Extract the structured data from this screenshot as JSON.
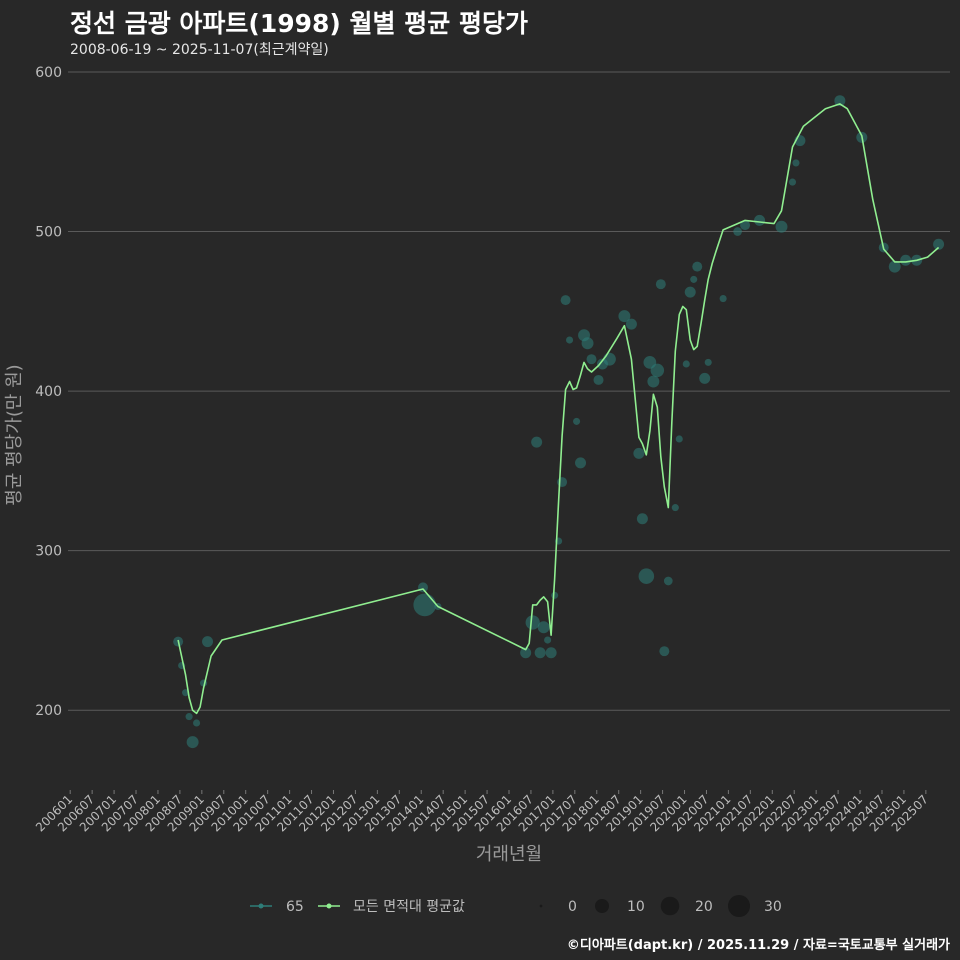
{
  "title": "정선 금광 아파트(1998) 월별 평균 평당가",
  "subtitle": "2008-06-19 ~ 2025-11-07(최근계약일)",
  "footer": "©디아파트(dapt.kr) / 2025.11.29 / 자료=국토교통부 실거래가",
  "colors": {
    "background": "#282828",
    "series_65": "#2e7d78",
    "series_avg": "#90ee90",
    "grid": "#5a5a5a",
    "text": "#bdbdbd"
  },
  "chart_data": {
    "type": "line",
    "xlabel": "거래년월",
    "ylabel": "평균 평당가(만 원)",
    "ylim": [
      150,
      605
    ],
    "yticks": [
      200,
      300,
      400,
      500,
      600
    ],
    "xlim": [
      2005.95,
      2026.05
    ],
    "xticks": [
      "200601",
      "200607",
      "200701",
      "200707",
      "200801",
      "200807",
      "200901",
      "200907",
      "201001",
      "201007",
      "201101",
      "201107",
      "201201",
      "201207",
      "201301",
      "201307",
      "201401",
      "201407",
      "201501",
      "201507",
      "201601",
      "201607",
      "201701",
      "201707",
      "201801",
      "201807",
      "201901",
      "201907",
      "202001",
      "202007",
      "202101",
      "202107",
      "202201",
      "202207",
      "202301",
      "202307",
      "202401",
      "202407",
      "202501",
      "202507"
    ],
    "legend": {
      "series": [
        {
          "name": "65"
        },
        {
          "name": "모든 면적대 평균값"
        }
      ],
      "size_title": "",
      "sizes": [
        {
          "label": "0",
          "value": 0
        },
        {
          "label": "10",
          "value": 10
        },
        {
          "label": "20",
          "value": 20
        },
        {
          "label": "30",
          "value": 30
        }
      ]
    },
    "series": [
      {
        "name": "65",
        "kind": "points",
        "points": [
          [
            2008.46,
            243,
            3
          ],
          [
            2008.54,
            228,
            1
          ],
          [
            2008.63,
            211,
            1
          ],
          [
            2008.71,
            196,
            1
          ],
          [
            2008.79,
            180,
            5
          ],
          [
            2008.88,
            192,
            1
          ],
          [
            2009.04,
            217,
            1
          ],
          [
            2009.13,
            243,
            4
          ],
          [
            2014.04,
            277,
            3
          ],
          [
            2014.08,
            266,
            25
          ],
          [
            2014.38,
            265,
            1
          ],
          [
            2016.38,
            236,
            4
          ],
          [
            2016.54,
            255,
            8
          ],
          [
            2016.63,
            368,
            4
          ],
          [
            2016.71,
            236,
            4
          ],
          [
            2016.79,
            252,
            5
          ],
          [
            2016.88,
            244,
            1
          ],
          [
            2016.96,
            236,
            4
          ],
          [
            2017.04,
            272,
            1
          ],
          [
            2017.13,
            306,
            1
          ],
          [
            2017.21,
            343,
            3
          ],
          [
            2017.29,
            457,
            3
          ],
          [
            2017.38,
            432,
            1
          ],
          [
            2017.54,
            381,
            1
          ],
          [
            2017.63,
            355,
            4
          ],
          [
            2017.71,
            435,
            5
          ],
          [
            2017.79,
            430,
            5
          ],
          [
            2017.88,
            420,
            3
          ],
          [
            2018.04,
            407,
            3
          ],
          [
            2018.13,
            417,
            4
          ],
          [
            2018.29,
            420,
            6
          ],
          [
            2018.63,
            447,
            5
          ],
          [
            2018.79,
            442,
            4
          ],
          [
            2018.96,
            361,
            4
          ],
          [
            2019.04,
            320,
            4
          ],
          [
            2019.13,
            284,
            10
          ],
          [
            2019.21,
            418,
            6
          ],
          [
            2019.29,
            406,
            5
          ],
          [
            2019.38,
            413,
            7
          ],
          [
            2019.46,
            467,
            3
          ],
          [
            2019.54,
            237,
            3
          ],
          [
            2019.63,
            281,
            2
          ],
          [
            2019.79,
            327,
            1
          ],
          [
            2019.88,
            370,
            1
          ],
          [
            2020.04,
            417,
            1
          ],
          [
            2020.13,
            462,
            4
          ],
          [
            2020.21,
            470,
            1
          ],
          [
            2020.29,
            478,
            3
          ],
          [
            2020.46,
            408,
            4
          ],
          [
            2020.54,
            418,
            1
          ],
          [
            2020.88,
            458,
            1
          ],
          [
            2021.21,
            500,
            2
          ],
          [
            2021.38,
            504,
            3
          ],
          [
            2021.71,
            507,
            4
          ],
          [
            2022.21,
            503,
            5
          ],
          [
            2022.46,
            531,
            1
          ],
          [
            2022.54,
            543,
            1
          ],
          [
            2022.63,
            557,
            4
          ],
          [
            2023.54,
            582,
            4
          ],
          [
            2024.04,
            559,
            4
          ],
          [
            2024.54,
            490,
            3
          ],
          [
            2024.79,
            478,
            5
          ],
          [
            2025.04,
            482,
            4
          ],
          [
            2025.29,
            482,
            4
          ],
          [
            2025.79,
            492,
            4
          ]
        ]
      },
      {
        "name": "모든 면적대 평균값",
        "kind": "line",
        "x": [
          2008.46,
          2008.63,
          2008.71,
          2008.79,
          2008.88,
          2008.96,
          2009.04,
          2009.21,
          2009.46,
          2014.04,
          2014.38,
          2016.38,
          2016.46,
          2016.54,
          2016.63,
          2016.71,
          2016.79,
          2016.88,
          2016.96,
          2017.04,
          2017.13,
          2017.21,
          2017.29,
          2017.38,
          2017.46,
          2017.54,
          2017.63,
          2017.71,
          2017.79,
          2017.88,
          2018.04,
          2018.21,
          2018.46,
          2018.63,
          2018.79,
          2018.96,
          2019.04,
          2019.13,
          2019.21,
          2019.29,
          2019.38,
          2019.46,
          2019.54,
          2019.63,
          2019.71,
          2019.79,
          2019.88,
          2019.96,
          2020.04,
          2020.13,
          2020.21,
          2020.29,
          2020.38,
          2020.46,
          2020.54,
          2020.63,
          2020.71,
          2020.88,
          2021.21,
          2021.38,
          2021.71,
          2022.04,
          2022.21,
          2022.46,
          2022.71,
          2023.21,
          2023.54,
          2023.71,
          2024.04,
          2024.29,
          2024.54,
          2024.79,
          2025.04,
          2025.29,
          2025.54,
          2025.79
        ],
        "y": [
          244,
          222,
          208,
          200,
          198,
          202,
          214,
          234,
          244,
          276,
          265,
          238,
          242,
          266,
          266,
          269,
          271,
          268,
          247,
          282,
          331,
          372,
          401,
          406,
          401,
          402,
          410,
          418,
          414,
          412,
          416,
          422,
          433,
          441,
          420,
          371,
          367,
          360,
          375,
          398,
          390,
          359,
          340,
          327,
          380,
          425,
          448,
          453,
          451,
          432,
          426,
          428,
          443,
          457,
          470,
          480,
          487,
          501,
          505,
          507,
          506,
          505,
          513,
          553,
          566,
          577,
          580,
          577,
          560,
          520,
          489,
          481,
          481,
          482,
          484,
          490
        ]
      }
    ]
  }
}
